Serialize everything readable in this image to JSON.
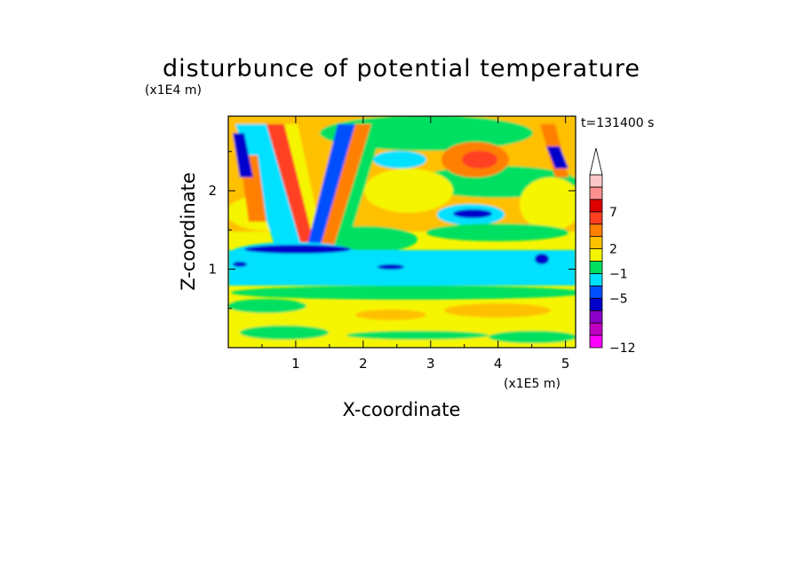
{
  "chart_data": {
    "type": "heatmap",
    "title": "disturbunce of potential temperature",
    "xlabel": "X-coordinate",
    "ylabel": "Z-coordinate",
    "x_unit": "(x1E5 m)",
    "y_unit": "(x1E4 m)",
    "time_label": "t=131400 s",
    "xlim": [
      0,
      5.15
    ],
    "ylim": [
      0,
      2.95
    ],
    "x_ticks": [
      "1",
      "2",
      "3",
      "4",
      "5"
    ],
    "y_ticks": [
      "1",
      "2"
    ],
    "colorbar": {
      "tick_labels": [
        "7",
        "2",
        "−1",
        "−5",
        "−12"
      ],
      "colors": [
        "#ff00ff",
        "#c000c0",
        "#8a00c8",
        "#0000cc",
        "#0050ff",
        "#00e0ff",
        "#00e060",
        "#f5f500",
        "#ffc000",
        "#ff8000",
        "#ff4020",
        "#e00000",
        "#ff9090",
        "#ffc8c8"
      ],
      "extend": "max"
    }
  }
}
